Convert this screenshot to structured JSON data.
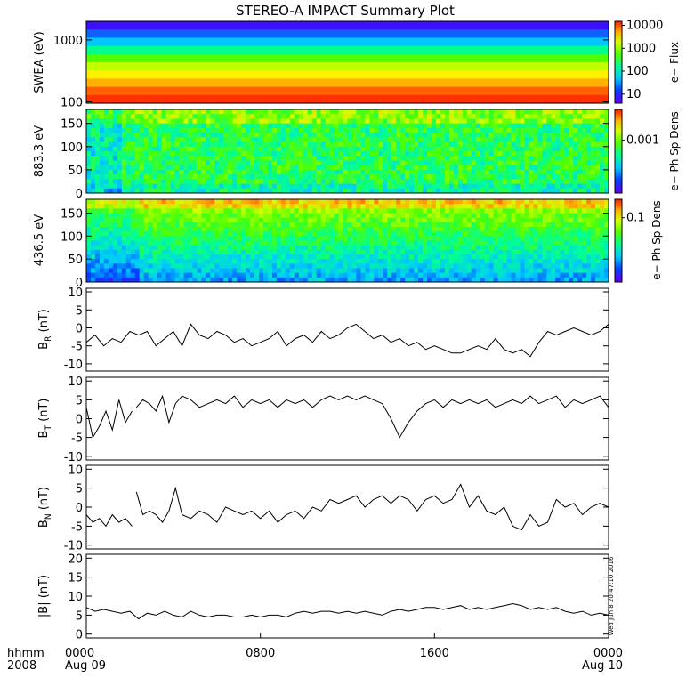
{
  "title": "STEREO-A IMPACT Summary Plot",
  "footer": {
    "row_label": "hhmm",
    "year": "2008",
    "x_ticks": [
      {
        "time": "0000",
        "date": "Aug 09",
        "hour": 0
      },
      {
        "time": "0800",
        "date": "",
        "hour": 8
      },
      {
        "time": "1600",
        "date": "",
        "hour": 16
      },
      {
        "time": "0000",
        "date": "Aug 10",
        "hour": 24
      }
    ],
    "timestamp": "Wed Jun  8 20:47:10 2016"
  },
  "colors": {
    "line": "#000000",
    "background": "#ffffff"
  },
  "chart_data": [
    {
      "type": "heatmap",
      "ylabel": "SWEA (eV)",
      "yscale": "log",
      "ylim": [
        95,
        2000
      ],
      "yticks": [
        100,
        1000
      ],
      "ytick_labels": [
        "100",
        "1000"
      ],
      "colorbar": {
        "label": "e− Flux",
        "scale": "log",
        "range": [
          4,
          15000
        ],
        "ticks": [
          10,
          100,
          1000,
          10000
        ],
        "tick_labels": [
          "10",
          "100",
          "1000",
          "10000"
        ]
      },
      "bands_top_to_bottom": [
        "#3a10ff",
        "#1060ff",
        "#00c8ff",
        "#00ff90",
        "#50ff00",
        "#c0ff00",
        "#fff000",
        "#ffb000",
        "#ff6000",
        "#ff3000"
      ]
    },
    {
      "type": "heatmap",
      "ylabel": "883.3 eV",
      "ylim": [
        0,
        180
      ],
      "yticks": [
        0,
        50,
        100,
        150
      ],
      "colorbar": {
        "label": "e− Ph Sp Dens",
        "scale": "log",
        "ticks": [
          0.001
        ],
        "tick_labels": [
          "0.001"
        ]
      }
    },
    {
      "type": "heatmap",
      "ylabel": "436.5 eV",
      "ylim": [
        0,
        180
      ],
      "yticks": [
        0,
        50,
        100,
        150
      ],
      "colorbar": {
        "label": "e− Ph Sp Dens",
        "scale": "log",
        "ticks": [
          0.1
        ],
        "tick_labels": [
          "0.1"
        ]
      }
    },
    {
      "type": "line",
      "ylabel": "B",
      "ylabel_sub": "R",
      "yunit": " (nT)",
      "xlim": [
        0,
        24
      ],
      "ylim": [
        -12,
        11
      ],
      "yticks": [
        -10,
        -5,
        0,
        5,
        10
      ],
      "x": [
        0,
        0.4,
        0.8,
        1.2,
        1.6,
        2.0,
        2.4,
        2.8,
        3.2,
        3.6,
        4.0,
        4.4,
        4.8,
        5.2,
        5.6,
        6.0,
        6.4,
        6.8,
        7.2,
        7.6,
        8.0,
        8.4,
        8.8,
        9.2,
        9.6,
        10.0,
        10.4,
        10.8,
        11.2,
        11.6,
        12.0,
        12.4,
        12.8,
        13.2,
        13.6,
        14.0,
        14.4,
        14.8,
        15.2,
        15.6,
        16.0,
        16.4,
        16.8,
        17.2,
        17.6,
        18.0,
        18.4,
        18.8,
        19.2,
        19.6,
        20.0,
        20.4,
        20.8,
        21.2,
        21.6,
        22.0,
        22.4,
        22.8,
        23.2,
        23.6,
        24.0
      ],
      "y": [
        -4,
        -2,
        -5,
        -3,
        -4,
        -1,
        -2,
        -1,
        -5,
        -3,
        -1,
        -5,
        1,
        -2,
        -3,
        -1,
        -2,
        -4,
        -3,
        -5,
        -4,
        -3,
        -1,
        -5,
        -3,
        -2,
        -4,
        -1,
        -3,
        -2,
        0,
        1,
        -1,
        -3,
        -2,
        -4,
        -3,
        -5,
        -4,
        -6,
        -5,
        -6,
        -7,
        -7,
        -6,
        -5,
        -6,
        -3,
        -6,
        -7,
        -6,
        -8,
        -4,
        -1,
        -2,
        -1,
        0,
        -1,
        -2,
        -1,
        1
      ]
    },
    {
      "type": "line",
      "ylabel": "B",
      "ylabel_sub": "T",
      "yunit": " (nT)",
      "xlim": [
        0,
        24
      ],
      "ylim": [
        -11,
        11
      ],
      "yticks": [
        -10,
        -5,
        0,
        5,
        10
      ],
      "segments": [
        {
          "x": [
            0,
            0.3,
            0.6,
            0.9,
            1.2,
            1.5,
            1.8,
            2.1
          ],
          "y": [
            3,
            -5,
            -2,
            2,
            -3,
            5,
            -1,
            2
          ]
        },
        {
          "x": [
            2.3,
            2.6,
            2.9,
            3.2,
            3.5,
            3.8,
            4.1,
            4.4,
            4.8,
            5.2,
            5.6,
            6.0,
            6.4,
            6.8,
            7.2,
            7.6,
            8.0,
            8.4,
            8.8,
            9.2,
            9.6,
            10.0,
            10.4,
            10.8,
            11.2,
            11.6,
            12.0,
            12.4,
            12.8,
            13.2,
            13.6,
            14.0,
            14.4,
            14.8,
            15.2,
            15.6,
            16.0,
            16.4,
            16.8,
            17.2,
            17.6,
            18.0,
            18.4,
            18.8,
            19.2,
            19.6,
            20.0,
            20.4,
            20.8,
            21.2,
            21.6,
            22.0,
            22.4,
            22.8,
            23.2,
            23.6,
            24.0
          ],
          "y": [
            3,
            5,
            4,
            2,
            6,
            -1,
            4,
            6,
            5,
            3,
            4,
            5,
            4,
            6,
            3,
            5,
            4,
            5,
            3,
            5,
            4,
            5,
            3,
            5,
            6,
            5,
            6,
            5,
            6,
            5,
            4,
            0,
            -5,
            -1,
            2,
            4,
            5,
            3,
            5,
            4,
            5,
            4,
            5,
            3,
            4,
            5,
            4,
            6,
            4,
            5,
            6,
            3,
            5,
            4,
            5,
            6,
            3
          ]
        }
      ]
    },
    {
      "type": "line",
      "ylabel": "B",
      "ylabel_sub": "N",
      "yunit": " (nT)",
      "xlim": [
        0,
        24
      ],
      "ylim": [
        -11,
        11
      ],
      "yticks": [
        -10,
        -5,
        0,
        5,
        10
      ],
      "segments": [
        {
          "x": [
            0,
            0.3,
            0.6,
            0.9,
            1.2,
            1.5,
            1.8,
            2.1
          ],
          "y": [
            -2,
            -4,
            -3,
            -5,
            -2,
            -4,
            -3,
            -5
          ]
        },
        {
          "x": [
            2.3,
            2.6,
            2.9,
            3.2,
            3.5,
            3.8,
            4.1,
            4.4,
            4.8,
            5.2,
            5.6,
            6.0,
            6.4,
            6.8,
            7.2,
            7.6,
            8.0,
            8.4,
            8.8,
            9.2,
            9.6,
            10.0,
            10.4,
            10.8,
            11.2,
            11.6,
            12.0,
            12.4,
            12.8,
            13.2,
            13.6,
            14.0,
            14.4,
            14.8,
            15.2,
            15.6,
            16.0,
            16.4,
            16.8,
            17.2,
            17.6,
            18.0,
            18.4,
            18.8,
            19.2,
            19.6,
            20.0,
            20.4,
            20.8,
            21.2,
            21.6,
            22.0,
            22.4,
            22.8,
            23.2,
            23.6,
            24.0
          ],
          "y": [
            4,
            -2,
            -1,
            -2,
            -4,
            -1,
            5,
            -2,
            -3,
            -1,
            -2,
            -4,
            0,
            -1,
            -2,
            -1,
            -3,
            -1,
            -4,
            -2,
            -1,
            -3,
            0,
            -1,
            2,
            1,
            2,
            3,
            0,
            2,
            3,
            1,
            3,
            2,
            -1,
            2,
            3,
            1,
            2,
            6,
            0,
            3,
            -1,
            -2,
            0,
            -5,
            -6,
            -2,
            -5,
            -4,
            2,
            0,
            1,
            -2,
            0,
            1,
            0
          ]
        }
      ]
    },
    {
      "type": "line",
      "ylabel": "|B|",
      "ylabel_sub": "",
      "yunit": " (nT)",
      "xlim": [
        0,
        24
      ],
      "ylim": [
        -1,
        21
      ],
      "yticks": [
        0,
        5,
        10,
        15,
        20
      ],
      "x": [
        0,
        0.4,
        0.8,
        1.2,
        1.6,
        2.0,
        2.4,
        2.8,
        3.2,
        3.6,
        4.0,
        4.4,
        4.8,
        5.2,
        5.6,
        6.0,
        6.4,
        6.8,
        7.2,
        7.6,
        8.0,
        8.4,
        8.8,
        9.2,
        9.6,
        10.0,
        10.4,
        10.8,
        11.2,
        11.6,
        12.0,
        12.4,
        12.8,
        13.2,
        13.6,
        14.0,
        14.4,
        14.8,
        15.2,
        15.6,
        16.0,
        16.4,
        16.8,
        17.2,
        17.6,
        18.0,
        18.4,
        18.8,
        19.2,
        19.6,
        20.0,
        20.4,
        20.8,
        21.2,
        21.6,
        22.0,
        22.4,
        22.8,
        23.2,
        23.6,
        24.0
      ],
      "y": [
        7,
        6,
        6.5,
        6,
        5.5,
        6,
        4,
        5.5,
        5,
        6,
        5,
        4.5,
        6,
        5,
        4.5,
        5,
        5,
        4.5,
        4.5,
        5,
        4.5,
        5,
        5,
        4.5,
        5.5,
        6,
        5.5,
        6,
        6,
        5.5,
        6,
        5.5,
        6,
        5.5,
        5,
        6,
        6.5,
        6,
        6.5,
        7,
        7,
        6.5,
        7,
        7.5,
        6.5,
        7,
        6.5,
        7,
        7.5,
        8,
        7.5,
        6.5,
        7,
        6.5,
        7,
        6,
        5.5,
        6,
        5,
        5.5,
        5
      ]
    }
  ]
}
